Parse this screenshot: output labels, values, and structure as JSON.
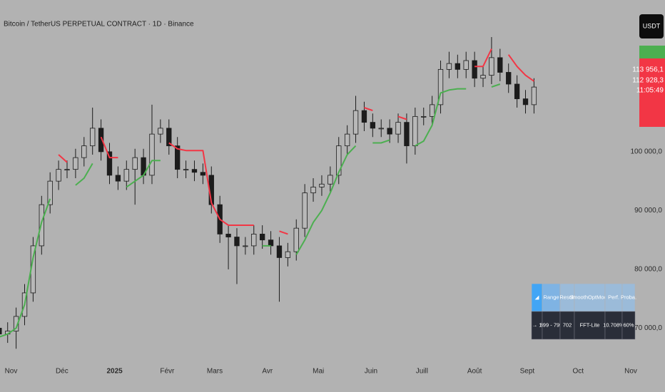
{
  "chart_data": {
    "type": "candlestick",
    "title": "Bitcoin / TetherUS PERPETUAL CONTRACT · 1D · Binance",
    "currency": "USDT",
    "up_color": "#b8b8b8",
    "down_color": "#1c1c1c",
    "wick_color": "#1c1c1c",
    "xlim": [
      0.1,
      74.9
    ],
    "xticks": [
      {
        "value": 1.4,
        "label": "Nov"
      },
      {
        "value": 7.4,
        "label": "Déc"
      },
      {
        "value": 13.6,
        "label": "2025"
      },
      {
        "value": 19.8,
        "label": "Févr"
      },
      {
        "value": 25.4,
        "label": "Mars"
      },
      {
        "value": 31.6,
        "label": "Avr"
      },
      {
        "value": 37.6,
        "label": "Mai"
      },
      {
        "value": 43.8,
        "label": "Juin"
      },
      {
        "value": 49.8,
        "label": "Juill"
      },
      {
        "value": 56,
        "label": "Août"
      },
      {
        "value": 62.2,
        "label": "Sept"
      },
      {
        "value": 68.2,
        "label": "Oct"
      },
      {
        "value": 74.4,
        "label": "Nov"
      }
    ],
    "ylim": [
      64600,
      125800
    ],
    "yticks": [
      {
        "value": 100000,
        "label": "100 000,0"
      },
      {
        "value": 90000,
        "label": "90 000,0"
      },
      {
        "value": 80000,
        "label": "80 000,0"
      },
      {
        "value": 70000,
        "label": "70 000,0"
      }
    ],
    "last_price_labels": [
      {
        "value": 113956.1,
        "label": "113 956,1"
      },
      {
        "value": 112928.3,
        "label": "112 928,3"
      }
    ],
    "countdown": "11:05:49",
    "candles": [
      [
        70000,
        71500,
        67500,
        69000
      ],
      [
        69000,
        71000,
        67500,
        69500
      ],
      [
        69500,
        73500,
        66500,
        72000
      ],
      [
        72000,
        77500,
        70500,
        76000
      ],
      [
        76000,
        85500,
        74500,
        84000
      ],
      [
        84000,
        92500,
        82500,
        91000
      ],
      [
        91000,
        96500,
        89500,
        95000
      ],
      [
        95000,
        98500,
        93500,
        97000
      ],
      [
        97000,
        98500,
        95500,
        97000
      ],
      [
        97000,
        100500,
        95500,
        99000
      ],
      [
        99000,
        102500,
        97500,
        101000
      ],
      [
        101000,
        107500,
        99500,
        104000
      ],
      [
        104000,
        105500,
        98500,
        100000
      ],
      [
        100000,
        101500,
        94500,
        96000
      ],
      [
        96000,
        97500,
        93500,
        95000
      ],
      [
        95000,
        98500,
        93500,
        97000
      ],
      [
        97000,
        100500,
        91000,
        99000
      ],
      [
        99000,
        100500,
        94500,
        96000
      ],
      [
        96000,
        108000,
        94500,
        103000
      ],
      [
        103000,
        105500,
        101500,
        104000
      ],
      [
        104000,
        105500,
        99500,
        101000
      ],
      [
        101000,
        102500,
        95500,
        97000
      ],
      [
        97000,
        98500,
        95500,
        97000
      ],
      [
        97000,
        98500,
        95000,
        96500
      ],
      [
        96500,
        98000,
        94500,
        96000
      ],
      [
        96000,
        97500,
        89500,
        91000
      ],
      [
        91000,
        92500,
        84500,
        86000
      ],
      [
        86000,
        87500,
        80000,
        85500
      ],
      [
        85500,
        87000,
        77500,
        84000
      ],
      [
        84000,
        85500,
        82500,
        84000
      ],
      [
        84000,
        87500,
        82500,
        86000
      ],
      [
        86000,
        87500,
        83500,
        85000
      ],
      [
        85000,
        86500,
        82500,
        84000
      ],
      [
        84000,
        85500,
        74500,
        82000
      ],
      [
        82000,
        84500,
        80500,
        83000
      ],
      [
        83000,
        88500,
        81500,
        87000
      ],
      [
        87000,
        94500,
        85500,
        93000
      ],
      [
        93000,
        95500,
        91500,
        94000
      ],
      [
        94000,
        96000,
        92500,
        94500
      ],
      [
        94500,
        97500,
        93000,
        96000
      ],
      [
        96000,
        102500,
        94500,
        101000
      ],
      [
        101000,
        104500,
        99500,
        103000
      ],
      [
        103000,
        109500,
        101500,
        107000
      ],
      [
        107000,
        108500,
        103500,
        105000
      ],
      [
        105000,
        106500,
        102500,
        104000
      ],
      [
        104000,
        105500,
        102500,
        104000
      ],
      [
        104000,
        105500,
        101500,
        103000
      ],
      [
        103000,
        106500,
        101500,
        105000
      ],
      [
        105000,
        106500,
        98000,
        101000
      ],
      [
        101000,
        107500,
        99500,
        106000
      ],
      [
        106000,
        107500,
        104500,
        106000
      ],
      [
        106000,
        109500,
        104500,
        108000
      ],
      [
        108000,
        115500,
        106500,
        114000
      ],
      [
        114000,
        117000,
        112500,
        115000
      ],
      [
        115000,
        116500,
        112500,
        114000
      ],
      [
        114000,
        117000,
        112500,
        115500
      ],
      [
        115500,
        117000,
        111000,
        112500
      ],
      [
        112500,
        114500,
        111000,
        113000
      ],
      [
        113000,
        119500,
        111500,
        116000
      ],
      [
        116000,
        117500,
        112000,
        113500
      ],
      [
        113500,
        115000,
        110000,
        111500
      ],
      [
        111500,
        113000,
        107500,
        109000
      ],
      [
        109000,
        110500,
        106500,
        108000
      ],
      [
        108000,
        112500,
        106500,
        111000
      ]
    ],
    "series": [
      {
        "color": "#f23645",
        "values": [
          null,
          null,
          null,
          null,
          null,
          null,
          null,
          99500,
          98200,
          null,
          null,
          null,
          102500,
          99000,
          99000,
          null,
          null,
          null,
          null,
          null,
          101500,
          100500,
          100200,
          100200,
          100200,
          91300,
          88500,
          87500,
          87500,
          87500,
          87500,
          null,
          null,
          86500,
          86000,
          null,
          null,
          null,
          null,
          null,
          null,
          null,
          null,
          107500,
          107000,
          null,
          null,
          106000,
          105500,
          null,
          null,
          null,
          null,
          null,
          null,
          null,
          114500,
          114500,
          117500,
          null,
          116500,
          114500,
          113000,
          112000
        ]
      },
      {
        "color": "#4caf50",
        "values": [
          68500,
          69000,
          70000,
          74000,
          82000,
          88000,
          92000,
          null,
          null,
          94300,
          95500,
          98000,
          null,
          null,
          null,
          94000,
          95000,
          96000,
          98500,
          98500,
          null,
          null,
          null,
          null,
          null,
          null,
          null,
          null,
          null,
          null,
          null,
          84000,
          84000,
          null,
          null,
          82500,
          85000,
          88000,
          90000,
          93000,
          96500,
          99500,
          101000,
          null,
          101500,
          101500,
          102000,
          null,
          null,
          101000,
          101800,
          104500,
          110000,
          110500,
          110700,
          110700,
          null,
          null,
          111000,
          111500,
          null,
          null,
          null,
          null
        ]
      }
    ]
  },
  "table": {
    "header": [
      "◢",
      "Range",
      "Result",
      "SmoothOptMode",
      "Perf.",
      "Proba."
    ],
    "rows": [
      [
        "→ 1",
        "399 - 799",
        "702",
        "FFT-Lite",
        "10.708%",
        "60%"
      ]
    ]
  }
}
